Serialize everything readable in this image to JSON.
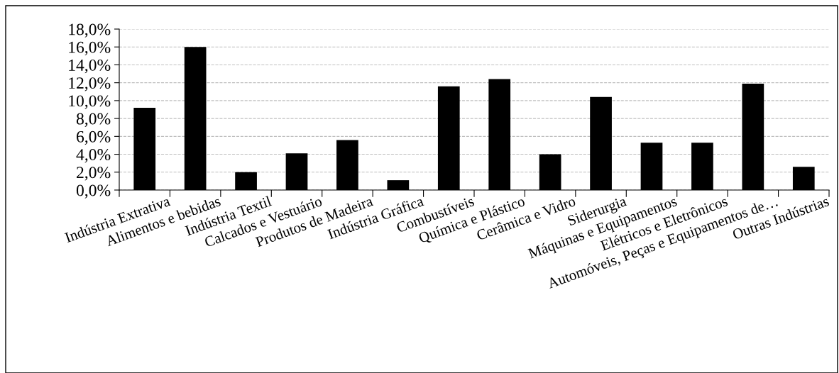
{
  "chart_data": {
    "type": "bar",
    "categories": [
      "Indústria Extrativa",
      "Alimentos e bebidas",
      "Indústria Textil",
      "Calcados e Vestuário",
      "Produtos de Madeira",
      "Indústria Gráfica",
      "Combustíveis",
      "Química e Plástico",
      "Cerâmica e Vidro",
      "Siderurgia",
      "Máquinas e Equipamentos",
      "Elétricos e Eletrônicos",
      "Automóveis, Peças e Equipamentos de…",
      "Outras Indústrias"
    ],
    "values": [
      9.2,
      16.0,
      2.0,
      4.1,
      5.6,
      1.1,
      11.6,
      12.4,
      4.0,
      10.4,
      5.3,
      5.3,
      11.9,
      2.6
    ],
    "color": "#000000",
    "ylim": [
      0,
      18
    ],
    "yticks": [
      {
        "value": 0,
        "label": "0,0%"
      },
      {
        "value": 2,
        "label": "2,0%"
      },
      {
        "value": 4,
        "label": "4,0%"
      },
      {
        "value": 6,
        "label": "6,0%"
      },
      {
        "value": 8,
        "label": "8,0%"
      },
      {
        "value": 10,
        "label": "10,0%"
      },
      {
        "value": 12,
        "label": "12,0%"
      },
      {
        "value": 14,
        "label": "14,0%"
      },
      {
        "value": 16,
        "label": "16,0%"
      },
      {
        "value": 18,
        "label": "18,0%"
      }
    ],
    "grid": "y"
  }
}
